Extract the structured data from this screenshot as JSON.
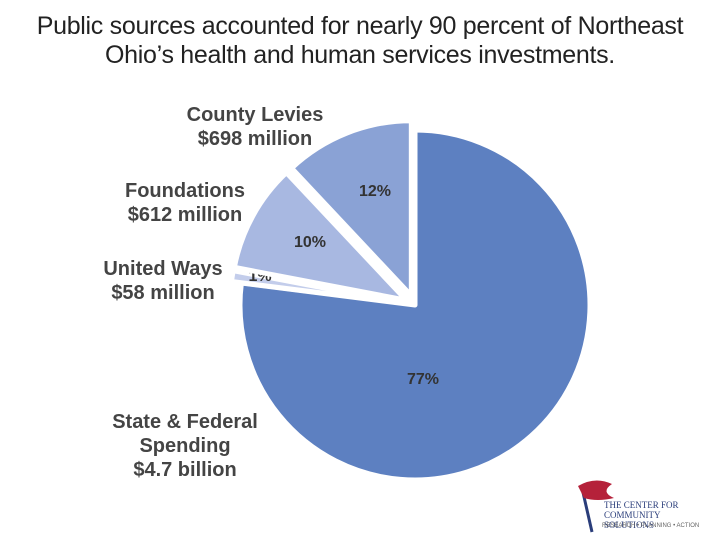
{
  "chart_data": {
    "type": "pie",
    "title": "Public sources accounted for nearly 90 percent of Northeast Ohio’s health and human services investments.",
    "categories": [
      "State & Federal Spending",
      "United Ways",
      "Foundations",
      "County Levies"
    ],
    "amounts": [
      "$4.7 billion",
      "$58 million",
      "$612 million",
      "$698 million"
    ],
    "values": [
      77,
      1,
      10,
      12
    ],
    "value_labels": [
      "77%",
      "1%",
      "10%",
      "12%"
    ],
    "colors": [
      "#5d80c1",
      "#c3cdeb",
      "#a8b8e1",
      "#8aa2d5"
    ]
  },
  "logo": {
    "name": "THE CENTER FOR COMMUNITY SOLUTIONS",
    "tagline": "RESEARCH • PLANNING • ACTION"
  }
}
